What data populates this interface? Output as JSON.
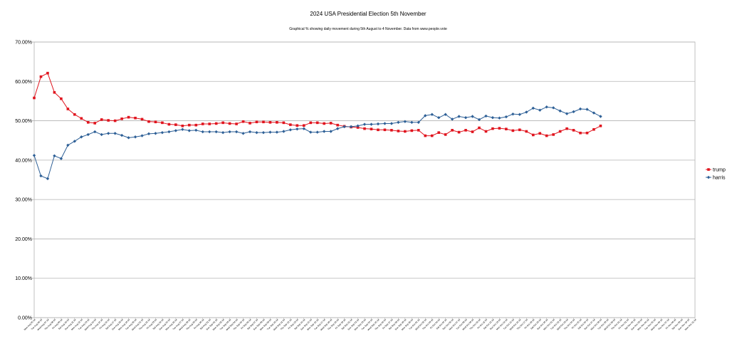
{
  "chart_data": {
    "type": "line",
    "title": "2024 USA Presidential Election 5th November",
    "subtitle": "Graphical % showing daily movement during 5th August to 4 November. Data from www.people.vote",
    "xlabel": "",
    "ylabel": "",
    "ylim": [
      0,
      70
    ],
    "y_ticks": [
      "0.00%",
      "10.00%",
      "20.00%",
      "30.00%",
      "40.00%",
      "50.00%",
      "60.00%",
      "70.00%"
    ],
    "grid": "horizontal",
    "legend_position": "right",
    "categories": [
      "Mon Aug 05 24",
      "Tue Aug 06 24",
      "Wed Aug 07 24",
      "Thu Aug 08 24",
      "Fri Aug 09 24",
      "Sat Aug 10 24",
      "Sun Aug 11 24",
      "Mon Aug 12 24",
      "Tue Aug 13 24",
      "Wed Aug 14 24",
      "Thu Aug 15 24",
      "Fri Aug 16 24",
      "Sat Aug 17 24",
      "Sun Aug 18 24",
      "Mon Aug 19 24",
      "Tue Aug 20 24",
      "Wed Aug 21 24",
      "Thu Aug 22 24",
      "Fri Aug 23 24",
      "Sat Aug 24 24",
      "Sun Aug 25 24",
      "Mon Aug 26 24",
      "Tue Aug 27 24",
      "Wed Aug 28 24",
      "Thu Aug 29 24",
      "Fri Aug 30 24",
      "Sat Aug 31 24",
      "Sun Sep 01 24",
      "Mon Sep 02 24",
      "Tue Sep 03 24",
      "Wed Sep 04 24",
      "Thu Sep 05 24",
      "Fri Sep 06 24",
      "Sat Sep 07 24",
      "Sun Sep 08 24",
      "Mon Sep 09 24",
      "Tue Sep 10 24",
      "Wed Sep 11 24",
      "Thu Sep 12 24",
      "Fri Sep 13 24",
      "Sat Sep 14 24",
      "Sun Sep 15 24",
      "Mon Sep 16 24",
      "Tue Sep 17 24",
      "Wed Sep 18 24",
      "Thu Sep 19 24",
      "Fri Sep 20 24",
      "Sat Sep 21 24",
      "Sun Sep 22 24",
      "Mon Sep 23 24",
      "Tue Sep 24 24",
      "Wed Sep 25 24",
      "Thu Sep 26 24",
      "Fri Sep 27 24",
      "Sat Sep 28 24",
      "Sun Sep 29 24",
      "Mon Sep 30 24",
      "Tue Oct 01 24",
      "Wed Oct 02 24",
      "Thu Oct 03 24",
      "Fri Oct 04 24",
      "Sat Oct 05 24",
      "Sun Oct 06 24",
      "Mon Oct 07 24",
      "Tue Oct 08 24",
      "Wed Oct 09 24",
      "Thu Oct 10 24",
      "Fri Oct 11 24",
      "Sat Oct 12 24",
      "Sun Oct 13 24",
      "Mon Oct 14 24",
      "Tue Oct 15 24",
      "Wed Oct 16 24",
      "Thu Oct 17 24",
      "Fri Oct 18 24",
      "Sat Oct 19 24",
      "Sun Oct 20 24",
      "Mon Oct 21 24",
      "Tue Oct 22 24",
      "Wed Oct 23 24",
      "Thu Oct 24 24",
      "Fri Oct 25 24",
      "Sat Oct 26 24",
      "Sun Oct 27 24",
      "Mon Oct 28 24",
      "Tue Oct 29 24",
      "Wed Oct 30 24",
      "Thu Oct 31 24",
      "Fri Nov 01 24",
      "Sat Nov 02 24",
      "Sun Nov 03 24",
      "Mon Nov 04 24",
      "Tue Nov 05 24",
      "Wed Nov 06 24",
      "Thu Nov 07 24",
      "Fri Nov 08 24",
      "Sat Nov 09 24",
      "Sun Nov 10 24",
      "Mon Nov 11 24"
    ],
    "series": [
      {
        "name": "trump",
        "color": "#e0141e",
        "marker": "square",
        "values": [
          55.8,
          61.2,
          62.1,
          57.2,
          55.6,
          53.0,
          51.6,
          50.6,
          49.6,
          49.4,
          50.3,
          50.1,
          50.0,
          50.5,
          50.9,
          50.7,
          50.4,
          49.8,
          49.7,
          49.5,
          49.1,
          49.0,
          48.7,
          48.9,
          48.9,
          49.2,
          49.2,
          49.3,
          49.5,
          49.3,
          49.2,
          49.8,
          49.4,
          49.7,
          49.7,
          49.6,
          49.6,
          49.5,
          49.0,
          48.8,
          48.8,
          49.5,
          49.5,
          49.3,
          49.4,
          48.9,
          48.6,
          48.4,
          48.3,
          48.0,
          47.9,
          47.7,
          47.7,
          47.6,
          47.4,
          47.3,
          47.5,
          47.6,
          46.2,
          46.2,
          47.0,
          46.5,
          47.6,
          47.1,
          47.6,
          47.2,
          48.2,
          47.3,
          48.0,
          48.1,
          47.9,
          47.5,
          47.7,
          47.3,
          46.4,
          46.8,
          46.2,
          46.5,
          47.3,
          48.0,
          47.6,
          46.9,
          46.9,
          47.8,
          48.7,
          null,
          null,
          null,
          null,
          null,
          null,
          null,
          null,
          null,
          null,
          null,
          null,
          null,
          null
        ]
      },
      {
        "name": "harris",
        "color": "#2d5f96",
        "marker": "diamond",
        "values": [
          41.2,
          36.0,
          35.3,
          41.1,
          40.4,
          43.8,
          44.8,
          45.9,
          46.5,
          47.2,
          46.5,
          46.8,
          46.8,
          46.3,
          45.7,
          45.9,
          46.2,
          46.7,
          46.8,
          47.0,
          47.2,
          47.5,
          47.8,
          47.5,
          47.6,
          47.2,
          47.2,
          47.2,
          47.0,
          47.2,
          47.2,
          46.8,
          47.2,
          47.0,
          47.0,
          47.1,
          47.1,
          47.3,
          47.7,
          47.9,
          48.0,
          47.1,
          47.1,
          47.3,
          47.3,
          48.0,
          48.5,
          48.5,
          48.7,
          49.1,
          49.1,
          49.2,
          49.3,
          49.3,
          49.6,
          49.8,
          49.6,
          49.6,
          51.3,
          51.6,
          50.8,
          51.6,
          50.4,
          51.1,
          50.8,
          51.1,
          50.3,
          51.2,
          50.8,
          50.7,
          51.0,
          51.7,
          51.6,
          52.2,
          53.2,
          52.7,
          53.5,
          53.3,
          52.5,
          51.8,
          52.3,
          53.0,
          52.9,
          52.0,
          51.1,
          null,
          null,
          null,
          null,
          null,
          null,
          null,
          null,
          null,
          null,
          null,
          null,
          null,
          null
        ]
      }
    ]
  }
}
